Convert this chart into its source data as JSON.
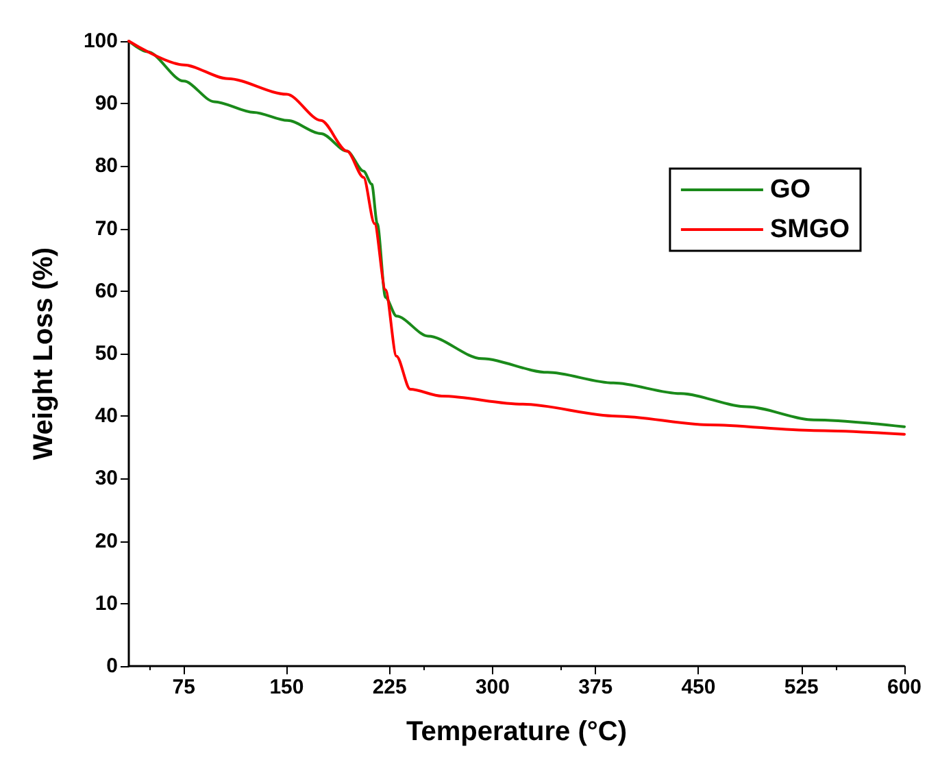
{
  "chart_data": {
    "type": "line",
    "xlabel": "Temperature (°C)",
    "ylabel": "Weight Loss (%)",
    "xlim": [
      35,
      600
    ],
    "xticks": [
      75,
      150,
      225,
      300,
      375,
      450,
      525,
      600
    ],
    "ylim": [
      0,
      100
    ],
    "yticks": [
      0,
      10,
      20,
      30,
      40,
      50,
      60,
      70,
      80,
      90,
      100
    ],
    "grid": false,
    "legend": "top right",
    "marker": "none",
    "line_style": "solid",
    "series": [
      {
        "name": "GO",
        "color": "#1a8a1a",
        "x": [
          35,
          48.6,
          75,
          97.3,
          126,
          150.7,
          175,
          194,
          206,
          212,
          216,
          222,
          230,
          253,
          292,
          340,
          388,
          437,
          485,
          534,
          600
        ],
        "values": [
          100,
          98.3,
          93.6,
          90.3,
          88.6,
          87.3,
          85.2,
          82.4,
          79.2,
          77.1,
          70.8,
          59,
          56,
          52.8,
          49.2,
          47,
          45.3,
          43.6,
          41.5,
          39.4,
          38.3
        ]
      },
      {
        "name": "SMGO",
        "color": "#ff0000",
        "x": [
          35,
          75,
          107,
          150,
          175,
          194,
          206,
          214,
          222,
          230,
          240,
          263,
          322,
          390,
          458,
          534,
          600
        ],
        "values": [
          100,
          96.2,
          94,
          91.5,
          87.3,
          82.4,
          78.2,
          70.8,
          60.2,
          49.6,
          44.3,
          43.2,
          41.9,
          40,
          38.6,
          37.7,
          37.1
        ]
      }
    ]
  }
}
